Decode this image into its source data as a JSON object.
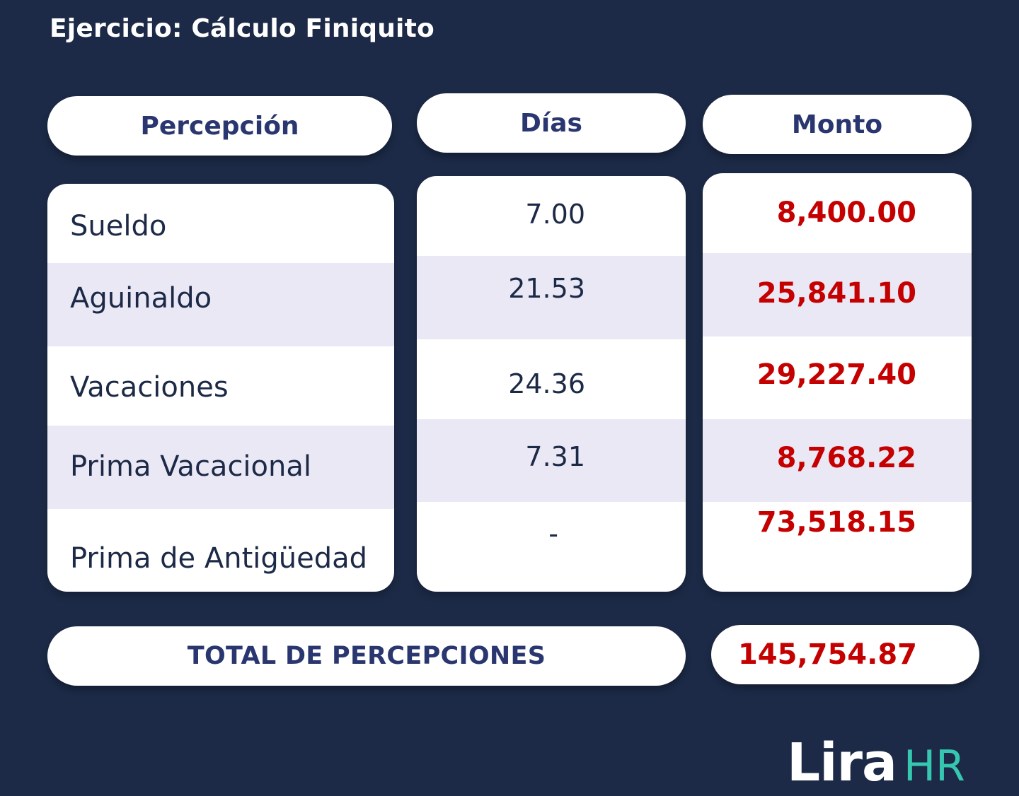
{
  "title": "Ejercicio: Cálculo Finiquito",
  "headers": {
    "percepcion": "Percepción",
    "dias": "Días",
    "monto": "Monto"
  },
  "rows": [
    {
      "label": "Sueldo",
      "dias": "7.00",
      "monto": "8,400.00"
    },
    {
      "label": "Aguinaldo",
      "dias": "21.53",
      "monto": "25,841.10"
    },
    {
      "label": "Vacaciones",
      "dias": "24.36",
      "monto": "29,227.40"
    },
    {
      "label": "Prima Vacacional",
      "dias": "7.31",
      "monto": "8,768.22"
    },
    {
      "label": "Prima de Antigüedad",
      "dias": "-",
      "monto": "73,518.15"
    }
  ],
  "total": {
    "label": "TOTAL DE PERCEPCIONES",
    "value": "145,754.87"
  },
  "logo": {
    "brand": "Lira",
    "suffix": "HR"
  },
  "colors": {
    "background": "#1c2a47",
    "header_text": "#2a3670",
    "amount": "#c40000",
    "row_shade": "#ebe8f5",
    "logo_accent": "#35c7b0"
  }
}
